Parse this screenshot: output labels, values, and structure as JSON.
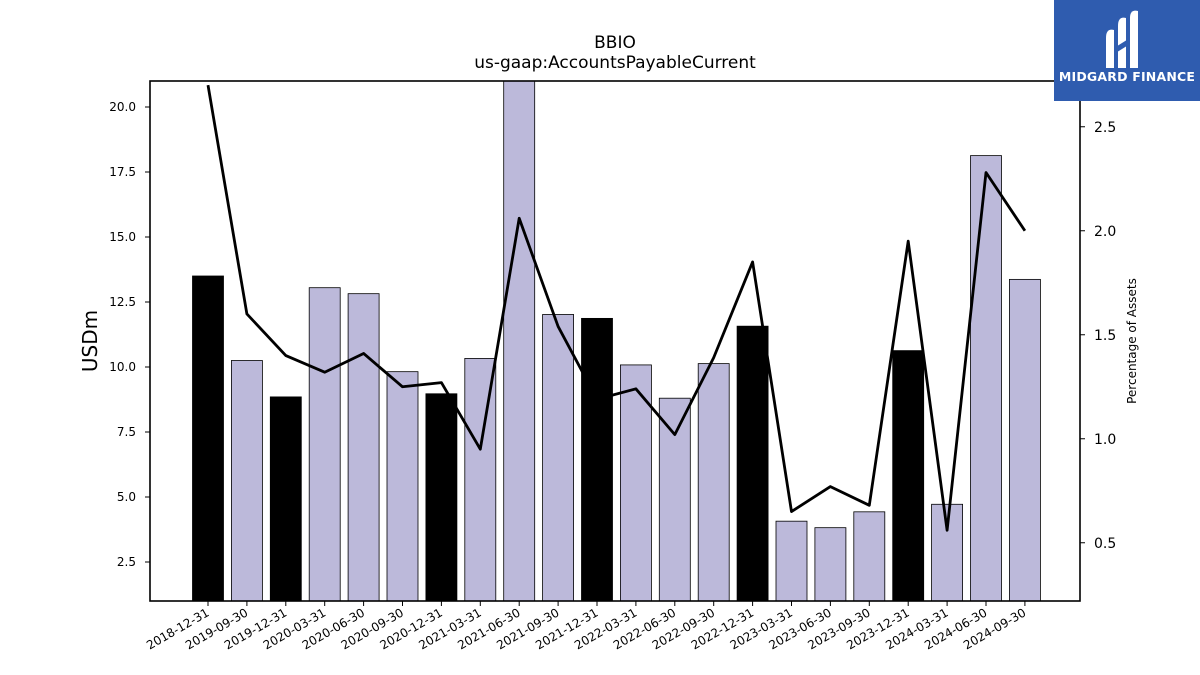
{
  "brand": {
    "name": "MIDGARD FINANCE"
  },
  "chart_data": {
    "type": "bar",
    "title": "BBIO",
    "subtitle": "us-gaap:AccountsPayableCurrent",
    "ylabel": "USDm",
    "y2label": "Percentage of Assets",
    "categories": [
      "2018-12-31",
      "2019-09-30",
      "2019-12-31",
      "2020-03-31",
      "2020-06-30",
      "2020-09-30",
      "2020-12-31",
      "2021-03-31",
      "2021-06-30",
      "2021-09-30",
      "2021-12-31",
      "2022-03-31",
      "2022-06-30",
      "2022-09-30",
      "2022-12-31",
      "2023-03-31",
      "2023-06-30",
      "2023-09-30",
      "2023-12-31",
      "2024-03-31",
      "2024-06-30",
      "2024-09-30"
    ],
    "series": [
      {
        "type": "bar",
        "axis": "left",
        "values": [
          13.5,
          10.25,
          8.85,
          13.05,
          12.82,
          9.82,
          8.97,
          10.33,
          21.0,
          12.02,
          11.87,
          10.08,
          8.8,
          10.13,
          11.57,
          4.07,
          3.82,
          4.43,
          10.63,
          4.72,
          18.13,
          13.37
        ]
      },
      {
        "type": "line",
        "axis": "right",
        "values": [
          2.7,
          1.6,
          1.4,
          1.32,
          1.41,
          1.25,
          1.27,
          0.95,
          2.06,
          1.54,
          1.19,
          1.24,
          1.02,
          1.39,
          1.85,
          0.65,
          0.77,
          0.68,
          1.95,
          0.56,
          2.28,
          2.0
        ]
      }
    ],
    "bar_colors": [
      "#000000",
      "#bcb9da",
      "#000000",
      "#bcb9da",
      "#bcb9da",
      "#bcb9da",
      "#000000",
      "#bcb9da",
      "#bcb9da",
      "#bcb9da",
      "#000000",
      "#bcb9da",
      "#bcb9da",
      "#bcb9da",
      "#000000",
      "#bcb9da",
      "#bcb9da",
      "#bcb9da",
      "#000000",
      "#bcb9da",
      "#bcb9da",
      "#bcb9da"
    ],
    "ylim": [
      1.0,
      21.0
    ],
    "y2lim": [
      0.22,
      2.72
    ],
    "yticks": [
      "2.5",
      "5.0",
      "7.5",
      "10.0",
      "12.5",
      "15.0",
      "17.5",
      "20.0"
    ],
    "y2ticks": [
      "0.5",
      "1.0",
      "1.5",
      "2.0",
      "2.5"
    ],
    "grid": false
  }
}
